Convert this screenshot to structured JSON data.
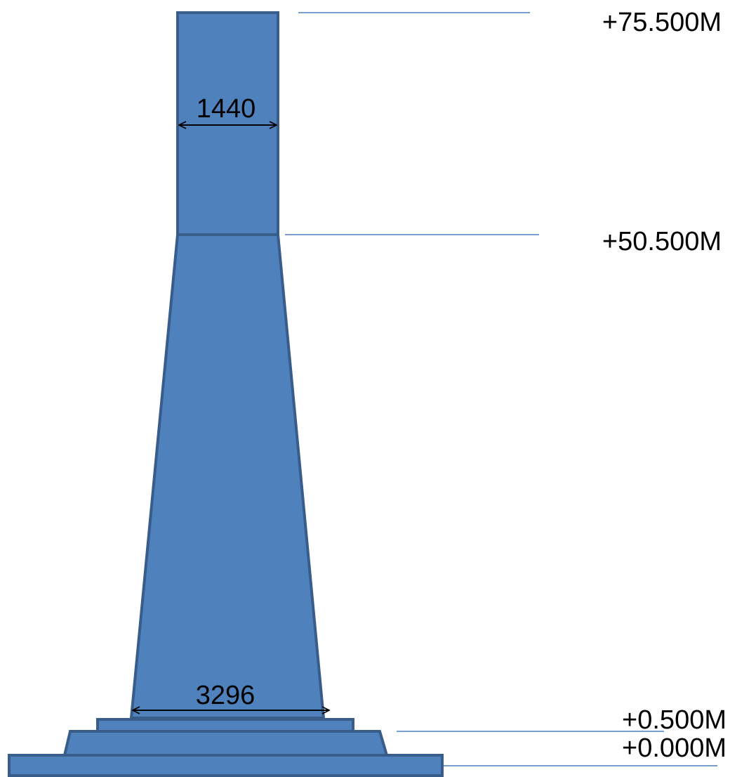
{
  "colors": {
    "shape_fill": "#4f81bd",
    "shape_stroke": "#385d8a",
    "lead_line": "#4a7ebb",
    "text": "#000000"
  },
  "elevations": {
    "top": "+75.500M",
    "upper": "+50.500M",
    "base_top": "+0.500M",
    "ground": "+0.000M"
  },
  "dimensions": {
    "upper_width": "1440",
    "base_width": "3296"
  }
}
